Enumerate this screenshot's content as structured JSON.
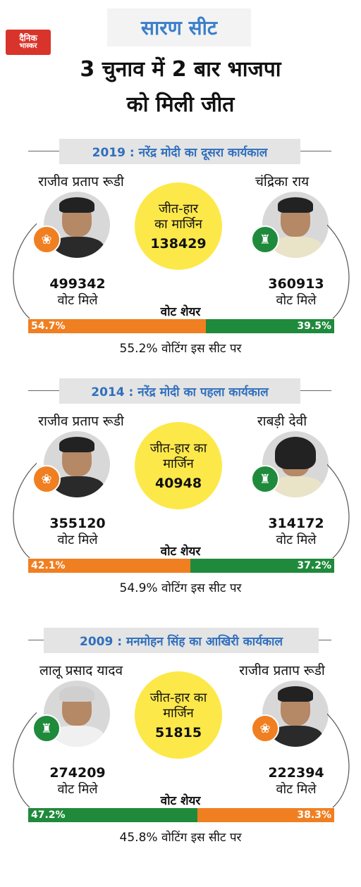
{
  "brand": {
    "logo_line1": "दैनिक",
    "logo_line2": "भास्कर"
  },
  "seat_title": "सारण सीट",
  "headline": {
    "line1": "3 चुनाव में 2 बार भाजपा",
    "line2": "को मिली जीत"
  },
  "colors": {
    "bjp": "#f07f21",
    "rjd": "#1f8a3b",
    "accent": "#3a7fcb",
    "margin_circle": "#fde84a"
  },
  "sections": [
    {
      "tag": "2019 : नरेंद्र मोदी का दूसरा कार्यकाल",
      "left": {
        "name": "राजीव प्रताप रूडी",
        "votes": "499342",
        "votes_label": "वोट मिले",
        "party_icon": "lotus-icon"
      },
      "right": {
        "name": "चंद्रिका राय",
        "votes": "360913",
        "votes_label": "वोट मिले",
        "party_icon": "lantern-icon"
      },
      "margin_label_1": "जीत-हार",
      "margin_label_2": "का मार्जिन",
      "margin_value": "138429",
      "vote_share_label": "वोट शेयर",
      "left_share": "54.7%",
      "right_share": "39.5%",
      "left_share_value": 54.7,
      "right_share_value": 39.5,
      "left_color": "#f07f21",
      "right_color": "#1f8a3b",
      "turnout": "55.2% वोटिंग इस सीट पर"
    },
    {
      "tag": "2014 : नरेंद्र मोदी का पहला कार्यकाल",
      "left": {
        "name": "राजीव प्रताप रूडी",
        "votes": "355120",
        "votes_label": "वोट मिले",
        "party_icon": "lotus-icon"
      },
      "right": {
        "name": "राबड़ी देवी",
        "votes": "314172",
        "votes_label": "वोट मिले",
        "party_icon": "lantern-icon"
      },
      "margin_label_1": "जीत-हार का",
      "margin_label_2": "मार्जिन",
      "margin_value": "40948",
      "vote_share_label": "वोट शेयर",
      "left_share": "42.1%",
      "right_share": "37.2%",
      "left_share_value": 42.1,
      "right_share_value": 37.2,
      "left_color": "#f07f21",
      "right_color": "#1f8a3b",
      "turnout": "54.9% वोटिंग इस सीट पर"
    },
    {
      "tag": "2009 : मनमोहन सिंह का आखिरी कार्यकाल",
      "left": {
        "name": "लालू प्रसाद यादव",
        "votes": "274209",
        "votes_label": "वोट मिले",
        "party_icon": "lantern-icon"
      },
      "right": {
        "name": "राजीव प्रताप रूडी",
        "votes": "222394",
        "votes_label": "वोट मिले",
        "party_icon": "lotus-icon"
      },
      "margin_label_1": "जीत-हार का",
      "margin_label_2": "मार्जिन",
      "margin_value": "51815",
      "vote_share_label": "वोट शेयर",
      "left_share": "47.2%",
      "right_share": "38.3%",
      "left_share_value": 47.2,
      "right_share_value": 38.3,
      "left_color": "#1f8a3b",
      "right_color": "#f07f21",
      "turnout": "45.8% वोटिंग इस सीट पर"
    }
  ]
}
